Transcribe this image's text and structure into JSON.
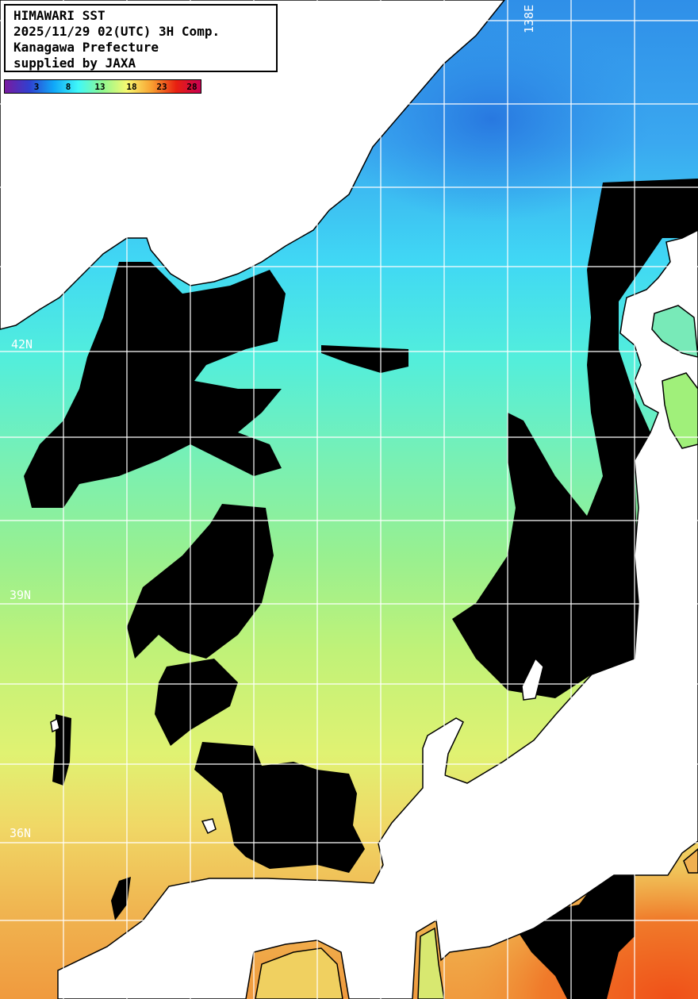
{
  "title": {
    "line1": "HIMAWARI SST",
    "line2": "2025/11/29 02(UTC) 3H Comp.",
    "line3": "Kanagawa Prefecture",
    "line4": "supplied by JAXA"
  },
  "colorbar": {
    "unit_range": [
      0,
      30
    ],
    "labels": [
      "3",
      "8",
      "13",
      "18",
      "23",
      "28"
    ],
    "colors": [
      "#7a1aa0",
      "#3040d0",
      "#10a8f8",
      "#40f8f8",
      "#90f890",
      "#f8f870",
      "#f8a030",
      "#e82010",
      "#c80050"
    ]
  },
  "grid": {
    "lat_labels": [
      "42N",
      "39N",
      "36N"
    ],
    "lon_labels": [
      "138E"
    ]
  },
  "colors": {
    "land": "#ffffff",
    "cloud": "#000000",
    "grid": "#ffffff"
  }
}
